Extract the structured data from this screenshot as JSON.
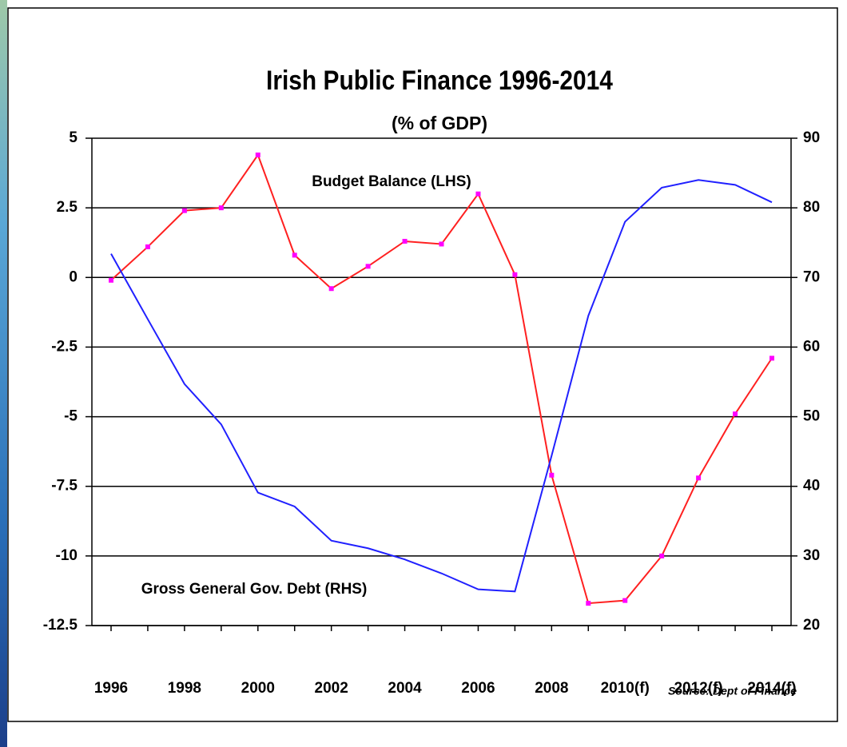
{
  "chart_data": {
    "type": "line",
    "title": "Irish Public Finance 1996-2014",
    "subtitle": "(% of GDP)",
    "source": "Source: Dept of Finance",
    "categories": [
      "1996",
      null,
      "1998",
      null,
      "2000",
      null,
      "2002",
      null,
      "2004",
      null,
      "2006",
      null,
      "2008",
      null,
      "2010(f)",
      null,
      "2012(f)",
      null,
      "2014(f)"
    ],
    "series": [
      {
        "name": "Budget Balance (LHS)",
        "color": "#ff2020",
        "marker_color": "#ff00ff",
        "values": [
          -0.1,
          1.1,
          2.4,
          2.5,
          4.4,
          0.8,
          -0.4,
          0.4,
          1.3,
          1.2,
          3.0,
          0.1,
          -7.1,
          -11.7,
          -11.6,
          -10.0,
          -7.2,
          -4.9,
          -2.9
        ]
      },
      {
        "name": "Gross General Gov. Debt (RHS)",
        "color": "#2020ff",
        "axis": "y2",
        "values": [
          73.4,
          64.0,
          54.7,
          48.9,
          39.1,
          37.1,
          32.2,
          31.1,
          29.5,
          27.5,
          25.2,
          24.9,
          44.4,
          64.5,
          78.0,
          82.9,
          84.0,
          83.3,
          80.8
        ]
      }
    ],
    "ylim": [
      -12.5,
      5
    ],
    "yticks": [
      5,
      2.5,
      0,
      -2.5,
      -5,
      -7.5,
      -10,
      -12.5
    ],
    "y2lim": [
      20,
      90
    ],
    "y2ticks": [
      90,
      80,
      70,
      60,
      50,
      40,
      30,
      20
    ],
    "grid": true
  }
}
